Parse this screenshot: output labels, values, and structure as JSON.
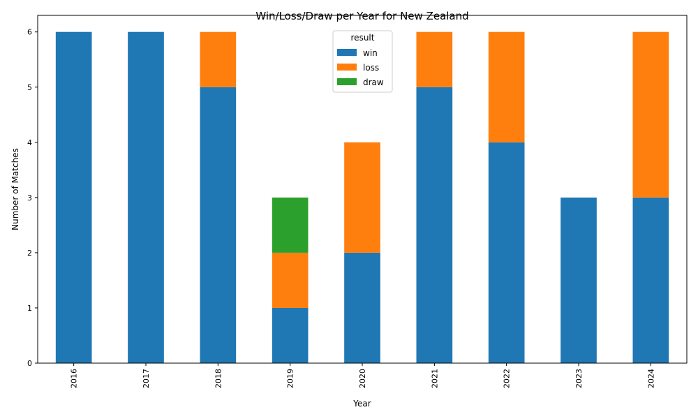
{
  "chart_data": {
    "type": "bar",
    "stacked": true,
    "title": "Win/Loss/Draw per Year for New Zealand",
    "xlabel": "Year",
    "ylabel": "Number of Matches",
    "categories": [
      "2016",
      "2017",
      "2018",
      "2019",
      "2020",
      "2021",
      "2022",
      "2023",
      "2024"
    ],
    "series": [
      {
        "name": "win",
        "color": "#1f77b4",
        "values": [
          6,
          6,
          5,
          1,
          2,
          5,
          4,
          3,
          3
        ]
      },
      {
        "name": "loss",
        "color": "#ff7f0e",
        "values": [
          0,
          0,
          1,
          1,
          2,
          1,
          2,
          0,
          3
        ]
      },
      {
        "name": "draw",
        "color": "#2ca02c",
        "values": [
          0,
          0,
          0,
          1,
          0,
          0,
          0,
          0,
          0
        ]
      }
    ],
    "ylim": [
      0,
      6.3
    ],
    "yticks": [
      0,
      1,
      2,
      3,
      4,
      5,
      6
    ],
    "grid": false,
    "legend": {
      "title": "result",
      "placement": "top-center"
    }
  }
}
